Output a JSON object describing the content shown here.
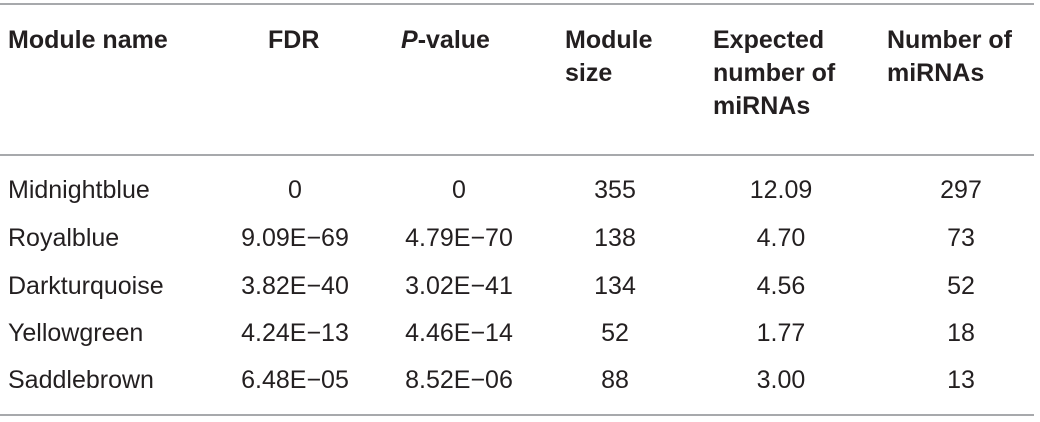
{
  "table": {
    "headers": [
      "Module name",
      "FDR",
      {
        "italic": "P",
        "text": "-value"
      },
      "Module size",
      "Expected number of miRNAs",
      "Number of miRNAs"
    ],
    "rows": [
      [
        "Midnightblue",
        "0",
        "0",
        "355",
        "12.09",
        "297"
      ],
      [
        "Royalblue",
        "9.09E−69",
        "4.79E−70",
        "138",
        "4.70",
        "73"
      ],
      [
        "Darkturquoise",
        "3.82E−40",
        "3.02E−41",
        "134",
        "4.56",
        "52"
      ],
      [
        "Yellowgreen",
        "4.24E−13",
        "4.46E−14",
        "52",
        "1.77",
        "18"
      ],
      [
        "Saddlebrown",
        "6.48E−05",
        "8.52E−06",
        "88",
        "3.00",
        "13"
      ]
    ]
  }
}
